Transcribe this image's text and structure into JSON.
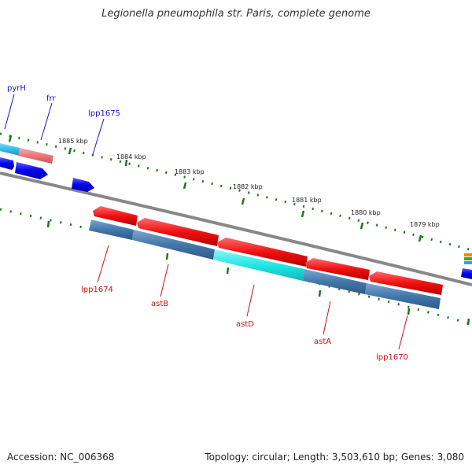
{
  "title": "Legionella pneumophila str. Paris, complete genome",
  "footer": {
    "accession": "Accession: NC_006368",
    "summary": "Topology: circular; Length: 3,503,610 bp; Genes: 3,080"
  },
  "scale_labels": [
    "1885 kbp",
    "1884 kbp",
    "1883 kbp",
    "1882 kbp",
    "1881 kbp",
    "1880 kbp",
    "1879 kbp"
  ],
  "genes_forward": [
    "pyrH",
    "frr",
    "lpp1675"
  ],
  "genes_reverse": [
    "lpp1674",
    "astB",
    "astD",
    "astA",
    "lpp1670"
  ],
  "colors": {
    "backbone": "#888888",
    "ticks": "#1a7a1a",
    "cds_forward": "#0000ee",
    "cds_reverse": "#ee1111",
    "cog_blue": "#4477aa",
    "cog_cyan": "#22dddd",
    "cog_sky": "#33bbee",
    "cog_pink": "#ee7777"
  }
}
